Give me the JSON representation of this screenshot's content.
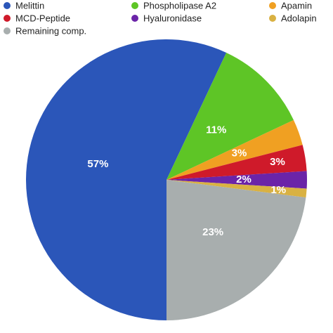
{
  "chart_data": {
    "type": "pie",
    "categories": [
      "Melittin",
      "Phospholipase A2",
      "Apamin",
      "MCD-Peptide",
      "Hyaluronidase",
      "Adolapin",
      "Remaining comp."
    ],
    "values": [
      57,
      11,
      3,
      3,
      2,
      1,
      23
    ],
    "value_labels": [
      "57%",
      "11%",
      "3%",
      "3%",
      "2%",
      "1%",
      "23%"
    ],
    "colors": [
      "#2b56b9",
      "#5ec526",
      "#f0a022",
      "#cf1a2a",
      "#6b24a8",
      "#d9b142",
      "#a8aeae"
    ]
  }
}
